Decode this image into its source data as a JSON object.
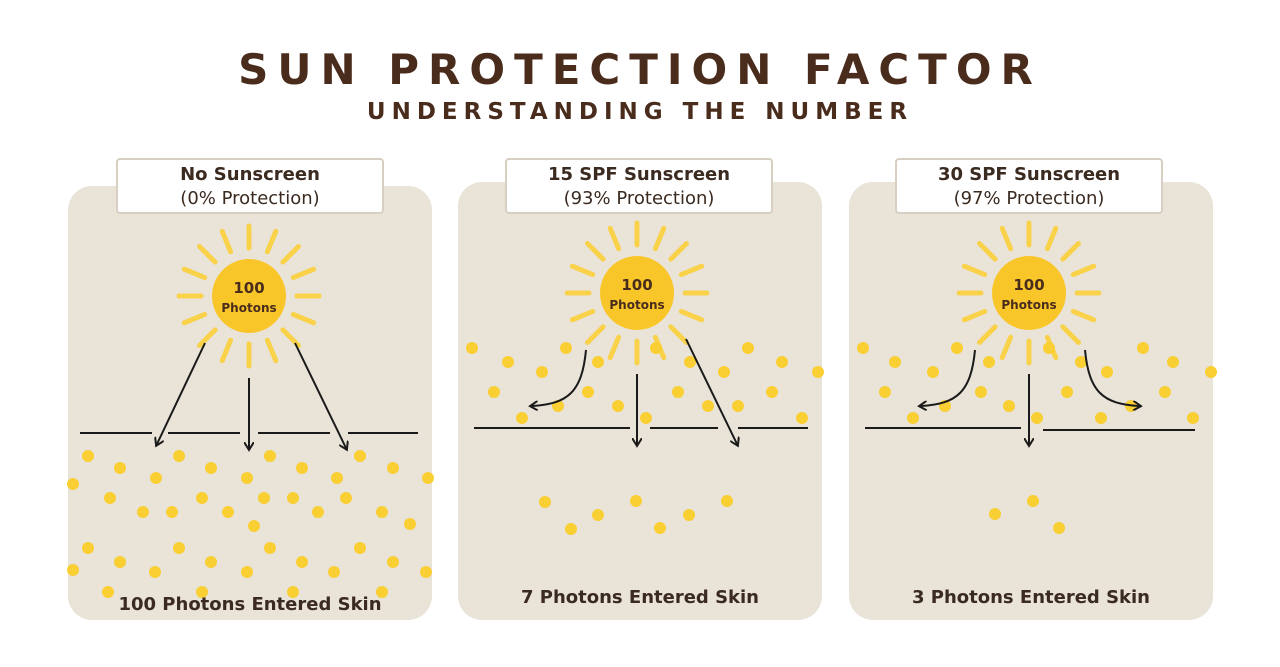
{
  "header": {
    "title": "SUN PROTECTION FACTOR",
    "subtitle": "UNDERSTANDING THE NUMBER"
  },
  "colors": {
    "title": "#4a2c1d",
    "card_background": "#e9e3d8",
    "sun": "#f9c62a",
    "ray": "#f9d24a",
    "photon_dot": "#f9cf33",
    "line": "#1a1a1a"
  },
  "panels": [
    {
      "label": "No Sunscreen",
      "protection": "(0% Protection)",
      "sun_value": "100",
      "sun_unit": "Photons",
      "result": "100 Photons Entered Skin",
      "photons_entered": 100,
      "sunscreen_layer": false,
      "icons": [
        "sun-icon",
        "arrow-down-icon"
      ]
    },
    {
      "label": "15 SPF Sunscreen",
      "protection": "(93% Protection)",
      "sun_value": "100",
      "sun_unit": "Photons",
      "result": "7 Photons Entered Skin",
      "photons_entered": 7,
      "sunscreen_layer": true,
      "icons": [
        "sun-icon",
        "arrow-down-icon",
        "arrow-curved-icon"
      ]
    },
    {
      "label": "30 SPF Sunscreen",
      "protection": "(97% Protection)",
      "sun_value": "100",
      "sun_unit": "Photons",
      "result": "3 Photons Entered Skin",
      "photons_entered": 3,
      "sunscreen_layer": true,
      "icons": [
        "sun-icon",
        "arrow-down-icon",
        "arrow-curved-icon"
      ]
    }
  ]
}
